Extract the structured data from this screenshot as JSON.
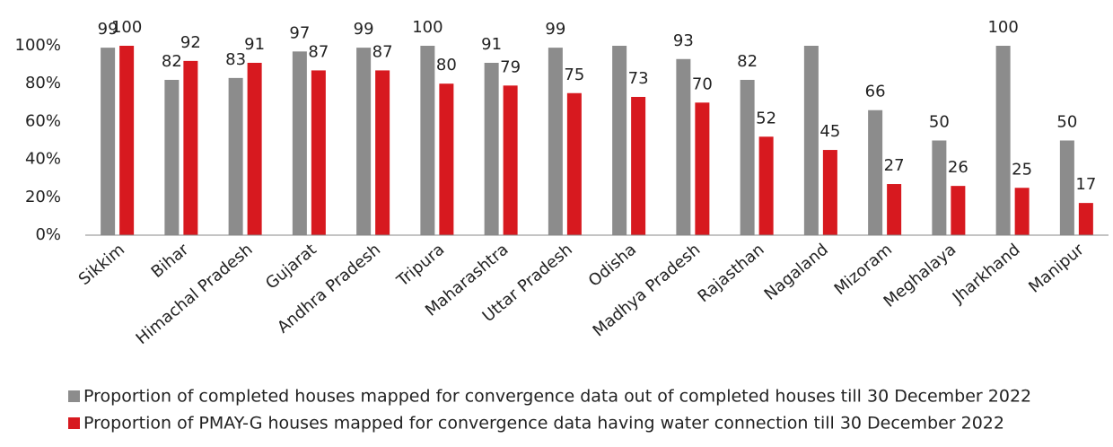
{
  "chart_data": {
    "type": "bar",
    "categories": [
      "Sikkim",
      "Bihar",
      "Himachal Pradesh",
      "Gujarat",
      "Andhra Pradesh",
      "Tripura",
      "Maharashtra",
      "Uttar Pradesh",
      "Odisha",
      "Madhya Pradesh",
      "Rajasthan",
      "Nagaland",
      "Mizoram",
      "Meghalaya",
      "Jharkhand",
      "Manipur"
    ],
    "series": [
      {
        "name": "Proportion of completed houses mapped for convergence data out of completed houses till 30 December 2022",
        "color": "#8c8c8c",
        "values": [
          99,
          82,
          83,
          97,
          99,
          100,
          91,
          99,
          100,
          93,
          82,
          100,
          66,
          50,
          100,
          50
        ],
        "value_labels": [
          "99",
          "82",
          "83",
          "97",
          "99",
          "100",
          "91",
          "99",
          null,
          "93",
          "82",
          null,
          "66",
          "50",
          "100",
          "50"
        ]
      },
      {
        "name": "Proportion of PMAY-G houses mapped for convergence data having water connection till 30 December 2022",
        "color": "#d7191f",
        "values": [
          100,
          92,
          91,
          87,
          87,
          80,
          79,
          75,
          73,
          70,
          52,
          45,
          27,
          26,
          25,
          17
        ]
      }
    ],
    "ylim": [
      0,
      100
    ],
    "yticks": [
      {
        "value": 0,
        "label": "0%"
      },
      {
        "value": 20,
        "label": "20%"
      },
      {
        "value": 40,
        "label": "40%"
      },
      {
        "value": 60,
        "label": "60%"
      },
      {
        "value": 80,
        "label": "80%"
      },
      {
        "value": 100,
        "label": "100%"
      }
    ],
    "grid": false,
    "legend": "bottom"
  }
}
